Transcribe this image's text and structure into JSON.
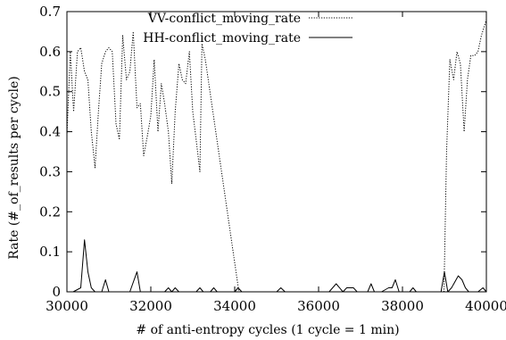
{
  "chart_data": {
    "type": "line",
    "title": "",
    "xlabel": "# of anti-entropy cycles (1 cycle = 1 min)",
    "ylabel": "Rate (#_of_results per cycle)",
    "xlim": [
      30000,
      40000
    ],
    "ylim": [
      0,
      0.7
    ],
    "xticks": [
      30000,
      32000,
      34000,
      36000,
      38000,
      40000
    ],
    "yticks": [
      0,
      0.1,
      0.2,
      0.3,
      0.4,
      0.5,
      0.6,
      0.7
    ],
    "xtick_labels": [
      "30000",
      "32000",
      "34000",
      "36000",
      "38000",
      "40000"
    ],
    "ytick_labels": [
      "0",
      "0.1",
      "0.2",
      "0.3",
      "0.4",
      "0.5",
      "0.6",
      "0.7"
    ],
    "grid": false,
    "legend_position": "top-right",
    "series": [
      {
        "name": "VV-conflict_moving_rate",
        "style": "dotted",
        "color": "#000000",
        "points": [
          [
            30000,
            0.39
          ],
          [
            30080,
            0.6
          ],
          [
            30160,
            0.45
          ],
          [
            30250,
            0.6
          ],
          [
            30330,
            0.61
          ],
          [
            30420,
            0.55
          ],
          [
            30500,
            0.53
          ],
          [
            30580,
            0.4
          ],
          [
            30670,
            0.31
          ],
          [
            30750,
            0.45
          ],
          [
            30830,
            0.57
          ],
          [
            30920,
            0.6
          ],
          [
            31000,
            0.61
          ],
          [
            31080,
            0.6
          ],
          [
            31170,
            0.42
          ],
          [
            31250,
            0.38
          ],
          [
            31330,
            0.64
          ],
          [
            31420,
            0.53
          ],
          [
            31500,
            0.55
          ],
          [
            31580,
            0.65
          ],
          [
            31670,
            0.46
          ],
          [
            31750,
            0.47
          ],
          [
            31830,
            0.34
          ],
          [
            31920,
            0.39
          ],
          [
            32000,
            0.44
          ],
          [
            32080,
            0.58
          ],
          [
            32170,
            0.4
          ],
          [
            32250,
            0.52
          ],
          [
            32330,
            0.47
          ],
          [
            32420,
            0.4
          ],
          [
            32500,
            0.27
          ],
          [
            32580,
            0.45
          ],
          [
            32670,
            0.57
          ],
          [
            32750,
            0.53
          ],
          [
            32830,
            0.52
          ],
          [
            32920,
            0.6
          ],
          [
            33000,
            0.45
          ],
          [
            33080,
            0.38
          ],
          [
            33170,
            0.3
          ],
          [
            33220,
            0.62
          ],
          [
            33300,
            0.58
          ],
          [
            34100,
            0.0
          ],
          [
            38990,
            0.0
          ],
          [
            39050,
            0.35
          ],
          [
            39130,
            0.58
          ],
          [
            39220,
            0.53
          ],
          [
            39300,
            0.6
          ],
          [
            39380,
            0.57
          ],
          [
            39470,
            0.4
          ],
          [
            39550,
            0.53
          ],
          [
            39630,
            0.59
          ],
          [
            39720,
            0.59
          ],
          [
            39800,
            0.6
          ],
          [
            39880,
            0.64
          ],
          [
            40000,
            0.68
          ]
        ]
      },
      {
        "name": "HH-conflict_moving_rate",
        "style": "solid",
        "color": "#000000",
        "points": [
          [
            30000,
            0.0
          ],
          [
            30150,
            0.0
          ],
          [
            30330,
            0.01
          ],
          [
            30420,
            0.13
          ],
          [
            30500,
            0.05
          ],
          [
            30580,
            0.01
          ],
          [
            30670,
            0.0
          ],
          [
            30830,
            0.0
          ],
          [
            30920,
            0.03
          ],
          [
            31000,
            0.0
          ],
          [
            31500,
            0.0
          ],
          [
            31670,
            0.05
          ],
          [
            31750,
            0.0
          ],
          [
            32330,
            0.0
          ],
          [
            32420,
            0.01
          ],
          [
            32500,
            0.0
          ],
          [
            32580,
            0.01
          ],
          [
            32670,
            0.0
          ],
          [
            33080,
            0.0
          ],
          [
            33170,
            0.01
          ],
          [
            33250,
            0.0
          ],
          [
            33420,
            0.0
          ],
          [
            33500,
            0.01
          ],
          [
            33580,
            0.0
          ],
          [
            34000,
            0.0
          ],
          [
            34080,
            0.01
          ],
          [
            34170,
            0.0
          ],
          [
            35000,
            0.0
          ],
          [
            35100,
            0.01
          ],
          [
            35200,
            0.0
          ],
          [
            36250,
            0.0
          ],
          [
            36420,
            0.02
          ],
          [
            36580,
            0.0
          ],
          [
            36670,
            0.01
          ],
          [
            36830,
            0.01
          ],
          [
            36920,
            0.0
          ],
          [
            37170,
            0.0
          ],
          [
            37250,
            0.02
          ],
          [
            37330,
            0.0
          ],
          [
            37500,
            0.0
          ],
          [
            37670,
            0.01
          ],
          [
            37750,
            0.01
          ],
          [
            37830,
            0.03
          ],
          [
            37920,
            0.0
          ],
          [
            38170,
            0.0
          ],
          [
            38250,
            0.01
          ],
          [
            38330,
            0.0
          ],
          [
            38920,
            0.0
          ],
          [
            39000,
            0.05
          ],
          [
            39080,
            0.0
          ],
          [
            39170,
            0.01
          ],
          [
            39330,
            0.04
          ],
          [
            39420,
            0.03
          ],
          [
            39500,
            0.01
          ],
          [
            39580,
            0.0
          ],
          [
            39800,
            0.0
          ],
          [
            39920,
            0.01
          ],
          [
            40000,
            0.0
          ]
        ]
      }
    ]
  }
}
